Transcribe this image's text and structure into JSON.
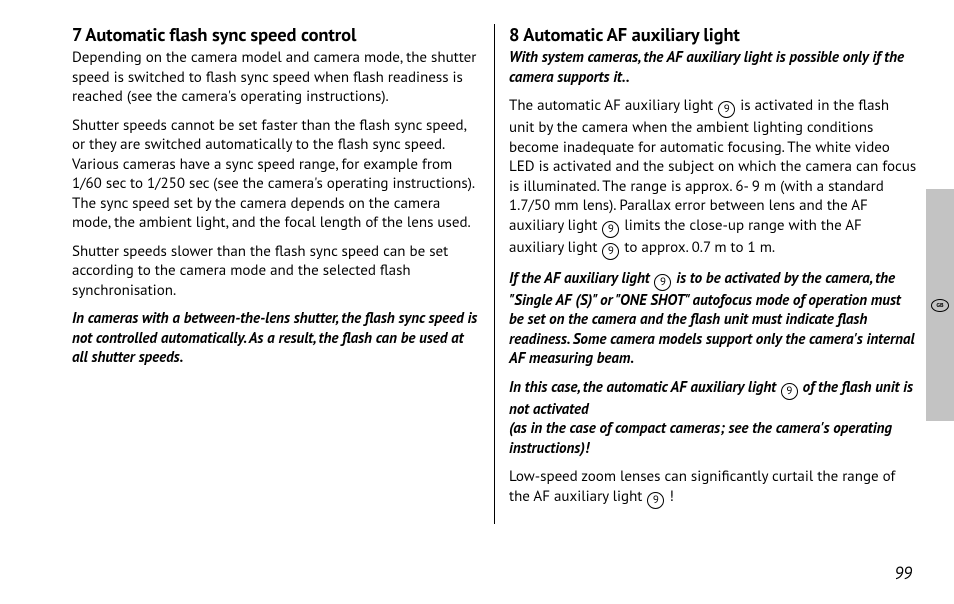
{
  "bg": "#ffffff",
  "text_color": "#000000",
  "sidebar_bg": "#c3c3c3",
  "divider_color": "#000000",
  "body_fontsize": 15,
  "heading_fontsize": 18.5,
  "line_height": 1.3,
  "circled": "9",
  "left": {
    "heading": "7 Automatic flash sync speed control",
    "p1": "Depending on the camera model and camera mode, the shutter speed is switched to flash sync speed when flash readiness is reached (see the camera's operating instructions).",
    "p2": "Shutter speeds cannot be set faster than the flash sync speed, or they are switched automatically to the flash sync speed. Various cameras have a sync speed range, for example from 1/60 sec to 1/250 sec (see the camera's operating instructions). The sync speed set by the camera depends on the camera mode, the ambient light, and the focal length of the lens used.",
    "p3": "Shutter speeds slower than the flash sync speed can be set according to the camera mode and the selected flash synchronisation.",
    "p4": "In cameras with a between-the-lens shutter, the flash sync speed is not controlled automatically. As a result, the flash can be used at all shutter speeds."
  },
  "right": {
    "heading": "8 Automatic AF auxiliary light",
    "p1": "With system cameras, the AF auxiliary light is possible only if the camera supports it..",
    "p2a": "The automatic AF auxiliary light ",
    "p2b": " is activated in the flash unit by the camera when the ambient lighting conditions become inadequate for automatic focusing. The white video LED is activated and the subject on which the camera can focus is illuminated. The range is approx. 6- 9 m (with a standard 1.7/50 mm lens). Parallax error between lens and the AF auxiliary light ",
    "p2c": " limits the close-up range with the AF auxiliary light ",
    "p2d": " to approx. 0.7 m to 1 m.",
    "p3a": "If the AF auxiliary light ",
    "p3b": " is to be activated by the camera, the \"Single AF (S)\" or \"ONE SHOT\" autofocus mode of operation must be set on the camera and the flash unit must indicate flash readiness. Some camera models support only the camera's internal AF measuring beam.",
    "p4a": "In this case, the automatic AF auxiliary light ",
    "p4b": " of the flash unit is not activated",
    "p4c": "(as in the case of compact cameras; see the camera's operating instructions)!",
    "p5a": "Low-speed zoom lenses can significantly curtail the range of the AF auxiliary light ",
    "p5b": " !"
  },
  "lang_badge": "GB",
  "page_number": "99"
}
